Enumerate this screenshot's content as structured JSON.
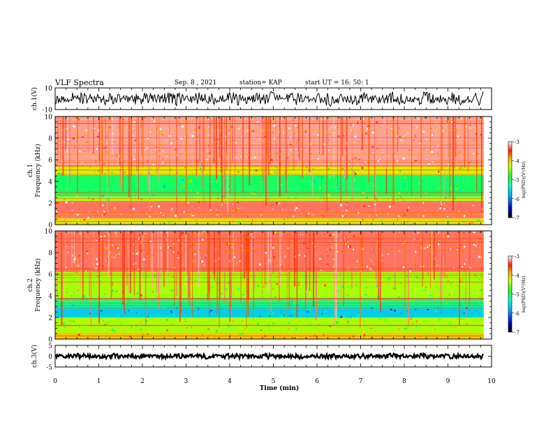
{
  "header": {
    "title": "VLF Spectra",
    "date": "Sep. 8 , 2021",
    "station": "station= KAP",
    "start": "start  UT =   16: 50: 1"
  },
  "chart_data": [
    {
      "type": "line",
      "panel": "ch1-waveform",
      "ylabel": "ch.1(V)",
      "ylim": [
        -10,
        10
      ],
      "yticks": [
        "10",
        "-10"
      ],
      "xlim": [
        0,
        10
      ],
      "x_extent_min": 9.82,
      "mean": 0,
      "approx_amplitude": 7
    },
    {
      "type": "heatmap",
      "panel": "ch1-spectrogram",
      "ylabel": "ch.1  Frequency (kHz)",
      "ylabel_line1": "ch.1",
      "ylabel_line2": "Frequency  (kHz)",
      "ylim": [
        0,
        10
      ],
      "yticks": [
        "0",
        "2",
        "4",
        "6",
        "8",
        "10"
      ],
      "xlim": [
        0,
        10
      ],
      "x_extent_min": 9.82,
      "colorbar": {
        "label": "log(PSD)(V²/Hz)",
        "range": [
          -7,
          -3
        ],
        "ticks": [
          "-3",
          "-4",
          "-5",
          "-6",
          "-7"
        ]
      },
      "bands_khz_log_psd": [
        {
          "from": 0.0,
          "to": 0.6,
          "level": -4.1
        },
        {
          "from": 0.6,
          "to": 2.2,
          "level": -3.3
        },
        {
          "from": 2.2,
          "to": 2.6,
          "level": -4.4
        },
        {
          "from": 2.6,
          "to": 4.6,
          "level": -5.0
        },
        {
          "from": 4.6,
          "to": 5.4,
          "level": -4.2
        },
        {
          "from": 5.4,
          "to": 10.0,
          "level": -3.2
        }
      ]
    },
    {
      "type": "heatmap",
      "panel": "ch2-spectrogram",
      "ylabel": "ch.2  Frequency (kHz)",
      "ylabel_line1": "ch.2",
      "ylabel_line2": "Frequency  (kHz)",
      "ylim": [
        0,
        10
      ],
      "yticks": [
        "0",
        "2",
        "4",
        "6",
        "8",
        "10"
      ],
      "xlim": [
        0,
        10
      ],
      "x_extent_min": 9.82,
      "colorbar": {
        "label": "log(PSD)(V²/Hz)",
        "range": [
          -7,
          -3
        ],
        "ticks": [
          "-3",
          "-4",
          "-5",
          "-6",
          "-7"
        ]
      },
      "bands_khz_log_psd": [
        {
          "from": 0.0,
          "to": 0.6,
          "level": -4.0
        },
        {
          "from": 0.6,
          "to": 2.0,
          "level": -4.4
        },
        {
          "from": 2.0,
          "to": 3.0,
          "level": -5.6
        },
        {
          "from": 3.0,
          "to": 3.8,
          "level": -5.1
        },
        {
          "from": 3.8,
          "to": 6.2,
          "level": -4.4
        },
        {
          "from": 6.2,
          "to": 10.0,
          "level": -3.3
        }
      ]
    },
    {
      "type": "line",
      "panel": "ch3-waveform",
      "ylabel": "ch.3(V)",
      "ylim": [
        -5,
        5
      ],
      "yticks": [
        "5",
        "0",
        "-5"
      ],
      "xlim": [
        0,
        10
      ],
      "x_extent_min": 9.82,
      "mean": 0,
      "approx_amplitude": 0.6
    }
  ],
  "xaxis": {
    "label": "Time  (min)",
    "ticks": [
      "0",
      "1",
      "2",
      "3",
      "4",
      "5",
      "6",
      "7",
      "8",
      "9",
      "10"
    ]
  }
}
